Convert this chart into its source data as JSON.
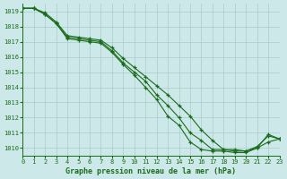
{
  "title": "Graphe pression niveau de la mer (hPa)",
  "bg_color": "#cce8e8",
  "grid_color": "#aacccc",
  "line_color": "#1a6b1a",
  "xlim": [
    0,
    23
  ],
  "ylim": [
    1009.5,
    1019.5
  ],
  "xticks": [
    0,
    1,
    2,
    3,
    4,
    5,
    6,
    7,
    8,
    9,
    10,
    11,
    12,
    13,
    14,
    15,
    16,
    17,
    18,
    19,
    20,
    21,
    22,
    23
  ],
  "yticks": [
    1010,
    1011,
    1012,
    1013,
    1014,
    1015,
    1016,
    1017,
    1018,
    1019
  ],
  "series": [
    [
      1019.2,
      1019.2,
      1018.8,
      1018.2,
      1017.2,
      1017.1,
      1017.0,
      1016.9,
      1016.3,
      1015.5,
      1014.8,
      1014.0,
      1013.2,
      1012.1,
      1011.5,
      1010.4,
      1009.9,
      1009.8,
      1009.8,
      1009.7,
      1009.7,
      1010.0,
      1010.4,
      1010.6
    ],
    [
      1019.2,
      1019.2,
      1018.8,
      1018.2,
      1017.3,
      1017.2,
      1017.1,
      1017.0,
      1016.4,
      1015.6,
      1015.0,
      1014.4,
      1013.5,
      1012.8,
      1012.0,
      1011.0,
      1010.5,
      1009.9,
      1009.9,
      1009.8,
      1009.8,
      1010.1,
      1010.8,
      1010.6
    ],
    [
      1019.2,
      1019.2,
      1018.9,
      1018.3,
      1017.4,
      1017.3,
      1017.2,
      1017.1,
      1016.6,
      1015.9,
      1015.3,
      1014.7,
      1014.1,
      1013.5,
      1012.8,
      1012.1,
      1011.2,
      1010.5,
      1009.9,
      1009.9,
      1009.8,
      1010.0,
      1010.9,
      1010.6
    ]
  ]
}
